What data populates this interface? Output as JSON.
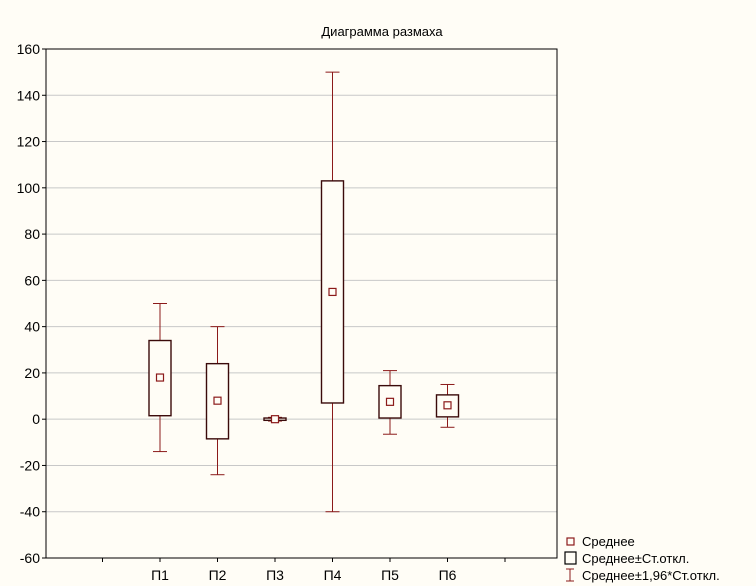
{
  "chart_data": {
    "type": "box",
    "title": "Диаграмма размаха",
    "xlabel": "",
    "ylabel": "",
    "ylim": [
      -60,
      160
    ],
    "yticks": [
      -60,
      -40,
      -20,
      0,
      20,
      40,
      60,
      80,
      100,
      120,
      140,
      160
    ],
    "grid": true,
    "legend_position": "bottom-right",
    "categories": [
      "П1",
      "П2",
      "П3",
      "П4",
      "П5",
      "П6"
    ],
    "series": [
      {
        "category": "П1",
        "mean": 18,
        "sd_low": 1.5,
        "sd_high": 34,
        "ci_low": -14,
        "ci_high": 50
      },
      {
        "category": "П2",
        "mean": 8,
        "sd_low": -8.5,
        "sd_high": 24,
        "ci_low": -24,
        "ci_high": 40
      },
      {
        "category": "П3",
        "mean": 0,
        "sd_low": -0.5,
        "sd_high": 0.5,
        "ci_low": -0.8,
        "ci_high": 0.8
      },
      {
        "category": "П4",
        "mean": 55,
        "sd_low": 7,
        "sd_high": 103,
        "ci_low": -40,
        "ci_high": 150
      },
      {
        "category": "П5",
        "mean": 7.5,
        "sd_low": 0.5,
        "sd_high": 14.5,
        "ci_low": -6.5,
        "ci_high": 21
      },
      {
        "category": "П6",
        "mean": 6,
        "sd_low": 1,
        "sd_high": 10.5,
        "ci_low": -3.5,
        "ci_high": 15
      }
    ],
    "legend": [
      {
        "symbol": "mean-marker",
        "label": "Среднее"
      },
      {
        "symbol": "box",
        "label": "Среднее±Ст.откл."
      },
      {
        "symbol": "whisker",
        "label": "Среднее±1,96*Ст.откл."
      }
    ],
    "colors": {
      "marks": "#8b1a1a",
      "box": "#3a0a0a",
      "frame": "#000000",
      "grid": "#c8c8c8",
      "background": "#fffdf6"
    }
  }
}
